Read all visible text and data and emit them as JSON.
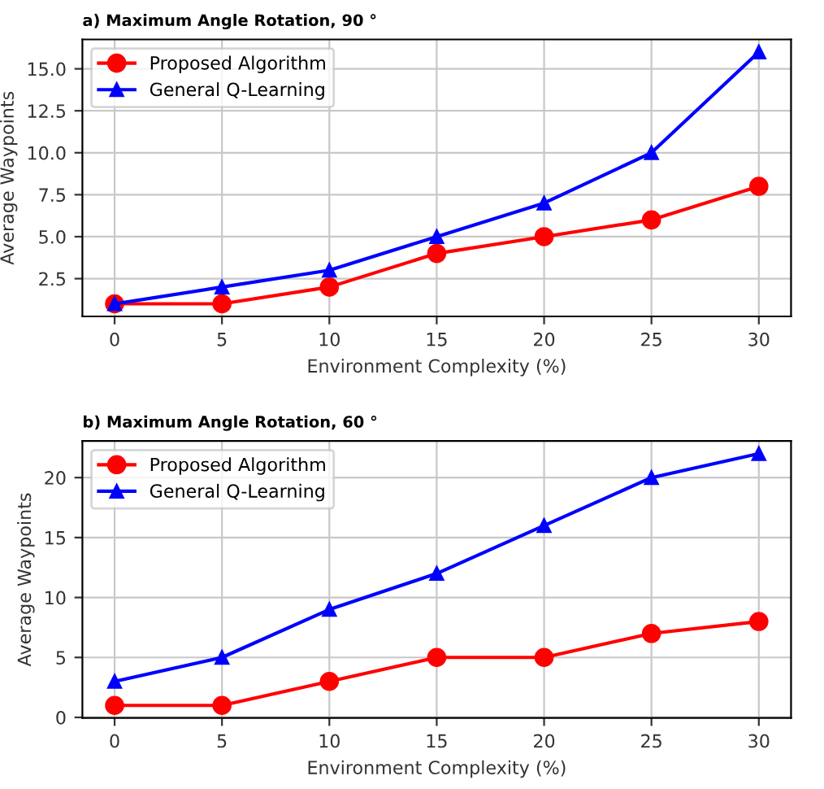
{
  "chart_data": [
    {
      "type": "line",
      "title": "a) Maximum Angle Rotation, 90 °",
      "xlabel": "Environment Complexity (%)",
      "ylabel": "Average Waypoints",
      "x": [
        0,
        5,
        10,
        15,
        20,
        25,
        30
      ],
      "series": [
        {
          "name": "Proposed Algorithm",
          "color": "#ff0000",
          "marker": "circle",
          "values": [
            1,
            1,
            2,
            4,
            5,
            6,
            8
          ]
        },
        {
          "name": "General Q-Learning",
          "color": "#0000ff",
          "marker": "triangle",
          "values": [
            1,
            2,
            3,
            5,
            7,
            10,
            16
          ]
        }
      ],
      "xlim": [
        -1.5,
        31.5
      ],
      "xticks": [
        0,
        5,
        10,
        15,
        20,
        25,
        30
      ],
      "ylim": [
        0.25,
        16.75
      ],
      "yticks": [
        {
          "value": 2.5,
          "label": "2.5"
        },
        {
          "value": 5,
          "label": "5.0"
        },
        {
          "value": 7.5,
          "label": "7.5"
        },
        {
          "value": 10,
          "label": "10.0"
        },
        {
          "value": 12.5,
          "label": "12.5"
        },
        {
          "value": 15,
          "label": "15.0"
        }
      ],
      "grid": true,
      "legend": "top left",
      "line_style": "solid"
    },
    {
      "type": "line",
      "title": "b) Maximum Angle Rotation, 60 °",
      "xlabel": "Environment Complexity (%)",
      "ylabel": "Average Waypoints",
      "x": [
        0,
        5,
        10,
        15,
        20,
        25,
        30
      ],
      "series": [
        {
          "name": "Proposed Algorithm",
          "color": "#ff0000",
          "marker": "circle",
          "values": [
            1,
            1,
            3,
            5,
            5,
            7,
            8
          ]
        },
        {
          "name": "General Q-Learning",
          "color": "#0000ff",
          "marker": "triangle",
          "values": [
            3,
            5,
            9,
            12,
            16,
            20,
            22
          ]
        }
      ],
      "xlim": [
        -1.5,
        31.5
      ],
      "xticks": [
        0,
        5,
        10,
        15,
        20,
        25,
        30
      ],
      "ylim": [
        -0.05,
        23.05
      ],
      "yticks": [
        0,
        5,
        10,
        15,
        20
      ],
      "grid": true,
      "legend": "top left",
      "line_style": "solid"
    }
  ]
}
